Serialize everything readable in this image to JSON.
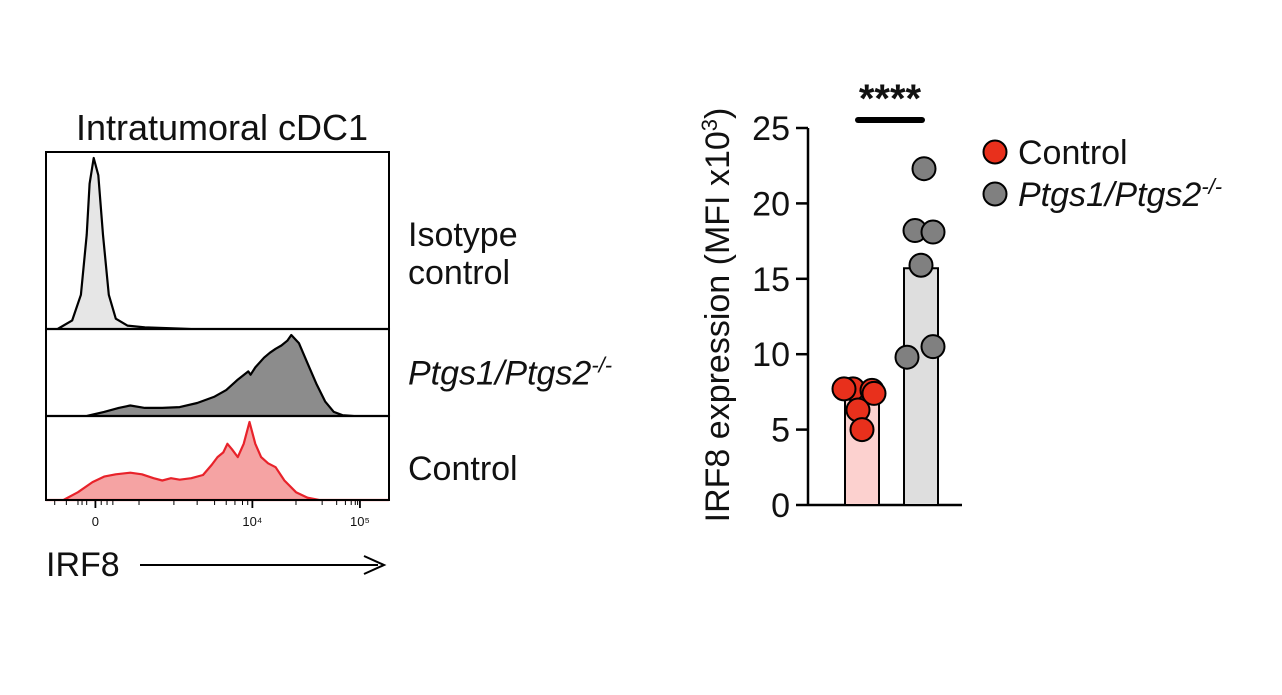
{
  "chart_data": [
    {
      "type": "histogram",
      "title": "Intratumoral cDC1",
      "xlabel": "IRF8",
      "x_scale": "biexponential",
      "x_ticks": [
        {
          "label": "0",
          "value": 0
        },
        {
          "label": "10⁴",
          "value": 10000
        },
        {
          "label": "10⁵",
          "value": 100000
        }
      ],
      "series": [
        {
          "name": "Isotype control",
          "lines": [
            "Isotype",
            "control"
          ],
          "color": "#e6e6e6",
          "stroke": "#000000",
          "profile": [
            [
              4.2,
              0
            ],
            [
              4.45,
              0.05
            ],
            [
              4.6,
              0.2
            ],
            [
              4.7,
              0.55
            ],
            [
              4.75,
              0.85
            ],
            [
              4.82,
              1.0
            ],
            [
              4.9,
              0.9
            ],
            [
              4.98,
              0.55
            ],
            [
              5.08,
              0.2
            ],
            [
              5.2,
              0.06
            ],
            [
              5.4,
              0.02
            ],
            [
              5.7,
              0.01
            ],
            [
              6.5,
              0
            ],
            [
              9.9,
              0
            ]
          ]
        },
        {
          "name": "Ptgs1/Ptgs2-/-",
          "italic": true,
          "base": "Ptgs1/Ptgs2",
          "sup": "-/-",
          "color": "#8c8c8c",
          "stroke": "#000000",
          "profile": [
            [
              4.7,
              0
            ],
            [
              5.0,
              0.05
            ],
            [
              5.25,
              0.1
            ],
            [
              5.45,
              0.13
            ],
            [
              5.7,
              0.1
            ],
            [
              6.0,
              0.1
            ],
            [
              6.3,
              0.11
            ],
            [
              6.6,
              0.16
            ],
            [
              6.9,
              0.24
            ],
            [
              7.1,
              0.32
            ],
            [
              7.3,
              0.45
            ],
            [
              7.48,
              0.55
            ],
            [
              7.52,
              0.51
            ],
            [
              7.6,
              0.6
            ],
            [
              7.75,
              0.72
            ],
            [
              7.85,
              0.78
            ],
            [
              7.95,
              0.83
            ],
            [
              8.05,
              0.87
            ],
            [
              8.15,
              0.93
            ],
            [
              8.22,
              1.0
            ],
            [
              8.35,
              0.9
            ],
            [
              8.5,
              0.65
            ],
            [
              8.65,
              0.4
            ],
            [
              8.8,
              0.18
            ],
            [
              8.95,
              0.05
            ],
            [
              9.1,
              0.01
            ],
            [
              9.3,
              0
            ],
            [
              9.9,
              0
            ]
          ]
        },
        {
          "name": "Control",
          "color": "#f5a3a3",
          "stroke": "#e8222a",
          "profile": [
            [
              4.3,
              0
            ],
            [
              4.55,
              0.1
            ],
            [
              4.8,
              0.23
            ],
            [
              5.0,
              0.3
            ],
            [
              5.2,
              0.33
            ],
            [
              5.45,
              0.35
            ],
            [
              5.65,
              0.33
            ],
            [
              5.85,
              0.28
            ],
            [
              6.0,
              0.25
            ],
            [
              6.15,
              0.28
            ],
            [
              6.3,
              0.26
            ],
            [
              6.5,
              0.28
            ],
            [
              6.7,
              0.32
            ],
            [
              6.85,
              0.45
            ],
            [
              6.95,
              0.55
            ],
            [
              7.05,
              0.61
            ],
            [
              7.12,
              0.72
            ],
            [
              7.2,
              0.65
            ],
            [
              7.3,
              0.55
            ],
            [
              7.4,
              0.72
            ],
            [
              7.5,
              1.0
            ],
            [
              7.6,
              0.72
            ],
            [
              7.7,
              0.55
            ],
            [
              7.82,
              0.47
            ],
            [
              7.95,
              0.42
            ],
            [
              8.1,
              0.25
            ],
            [
              8.3,
              0.1
            ],
            [
              8.5,
              0.03
            ],
            [
              8.7,
              0
            ],
            [
              9.9,
              0
            ]
          ]
        }
      ]
    },
    {
      "type": "bar",
      "ylabel": "IRF8 expression (MFI x10",
      "ylabel_sup": "3",
      "ylabel_close": ")",
      "ylim": [
        0,
        25
      ],
      "yticks": [
        0,
        5,
        10,
        15,
        20,
        25
      ],
      "significance": "****",
      "series": [
        {
          "name": "Control",
          "italic": false,
          "color": "#e8301c",
          "bar_fill": "#fcd1cf",
          "mean": 7.0,
          "points": [
            7.7,
            7.6,
            7.7,
            7.4,
            6.3,
            5.0
          ]
        },
        {
          "name": "Ptgs1/Ptgs2",
          "sup": "-/-",
          "italic": true,
          "color": "#808080",
          "bar_fill": "#dedede",
          "mean": 15.7,
          "points": [
            22.3,
            18.2,
            18.1,
            15.9,
            10.5,
            9.8
          ]
        }
      ]
    }
  ]
}
